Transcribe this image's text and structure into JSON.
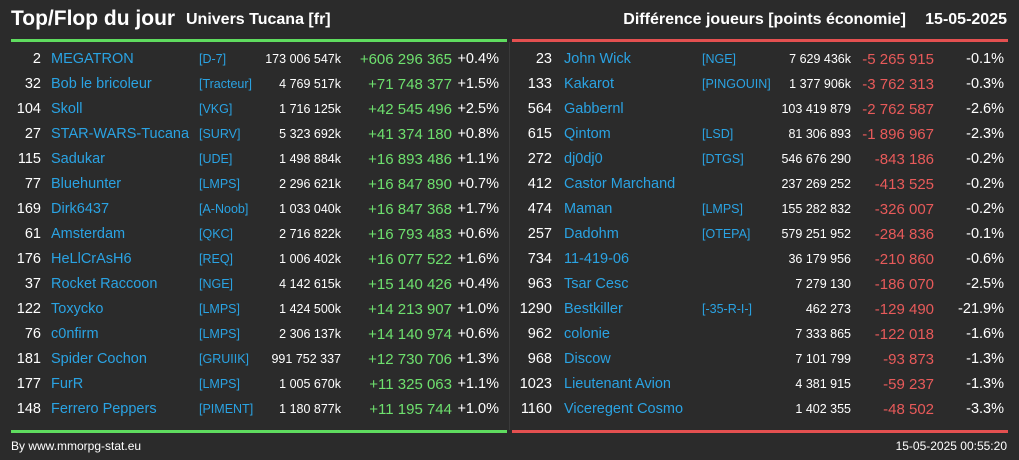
{
  "header": {
    "title": "Top/Flop du jour",
    "subtitle": "Univers Tucana [fr]",
    "diff_label": "Différence joueurs [points économie]",
    "date": "15-05-2025"
  },
  "colors": {
    "background": "#2b2b2b",
    "name": "#2aa3e3",
    "gain": "#6ee06e",
    "loss": "#e85a5a",
    "top_bar": "#5fdc5f",
    "flop_bar": "#e45050"
  },
  "top": [
    {
      "rank": "2",
      "name": "MEGATRON",
      "alliance": "[D-7]",
      "points": "173 006 547k",
      "diff": "+606 296 365",
      "pct": "+0.4%"
    },
    {
      "rank": "32",
      "name": "Bob le bricoleur",
      "alliance": "[Tracteur]",
      "points": "4 769 517k",
      "diff": "+71 748 377",
      "pct": "+1.5%"
    },
    {
      "rank": "104",
      "name": "Skoll",
      "alliance": "[VKG]",
      "points": "1 716 125k",
      "diff": "+42 545 496",
      "pct": "+2.5%"
    },
    {
      "rank": "27",
      "name": "STAR-WARS-Tucana",
      "alliance": "[SURV]",
      "points": "5 323 692k",
      "diff": "+41 374 180",
      "pct": "+0.8%"
    },
    {
      "rank": "115",
      "name": "Sadukar",
      "alliance": "[UDE]",
      "points": "1 498 884k",
      "diff": "+16 893 486",
      "pct": "+1.1%"
    },
    {
      "rank": "77",
      "name": "Bluehunter",
      "alliance": "[LMPS]",
      "points": "2 296 621k",
      "diff": "+16 847 890",
      "pct": "+0.7%"
    },
    {
      "rank": "169",
      "name": "Dirk6437",
      "alliance": "[A-Noob]",
      "points": "1 033 040k",
      "diff": "+16 847 368",
      "pct": "+1.7%"
    },
    {
      "rank": "61",
      "name": "Amsterdam",
      "alliance": "[QKC]",
      "points": "2 716 822k",
      "diff": "+16 793 483",
      "pct": "+0.6%"
    },
    {
      "rank": "176",
      "name": "HeLlCrAsH6",
      "alliance": "[REQ]",
      "points": "1 006 402k",
      "diff": "+16 077 522",
      "pct": "+1.6%"
    },
    {
      "rank": "37",
      "name": "Rocket Raccoon",
      "alliance": "[NGE]",
      "points": "4 142 615k",
      "diff": "+15 140 426",
      "pct": "+0.4%"
    },
    {
      "rank": "122",
      "name": "Toxycko",
      "alliance": "[LMPS]",
      "points": "1 424 500k",
      "diff": "+14 213 907",
      "pct": "+1.0%"
    },
    {
      "rank": "76",
      "name": "c0nfirm",
      "alliance": "[LMPS]",
      "points": "2 306 137k",
      "diff": "+14 140 974",
      "pct": "+0.6%"
    },
    {
      "rank": "181",
      "name": "Spider Cochon",
      "alliance": "[GRUIIK]",
      "points": "991 752 337",
      "diff": "+12 730 706",
      "pct": "+1.3%"
    },
    {
      "rank": "177",
      "name": "FurR",
      "alliance": "[LMPS]",
      "points": "1 005 670k",
      "diff": "+11 325 063",
      "pct": "+1.1%"
    },
    {
      "rank": "148",
      "name": "Ferrero Peppers",
      "alliance": "[PIMENT]",
      "points": "1 180 877k",
      "diff": "+11 195 744",
      "pct": "+1.0%"
    }
  ],
  "flop": [
    {
      "rank": "23",
      "name": "John Wick",
      "alliance": "[NGE]",
      "points": "7 629 436k",
      "diff": "-5 265 915",
      "pct": "-0.1%"
    },
    {
      "rank": "133",
      "name": "Kakarot",
      "alliance": "[PINGOUIN]",
      "points": "1 377 906k",
      "diff": "-3 762 313",
      "pct": "-0.3%"
    },
    {
      "rank": "564",
      "name": "Gabbernl",
      "alliance": "",
      "points": "103 419 879",
      "diff": "-2 762 587",
      "pct": "-2.6%"
    },
    {
      "rank": "615",
      "name": "Qintom",
      "alliance": "[LSD]",
      "points": "81 306 893",
      "diff": "-1 896 967",
      "pct": "-2.3%"
    },
    {
      "rank": "272",
      "name": "dj0dj0",
      "alliance": "[DTGS]",
      "points": "546 676 290",
      "diff": "-843 186",
      "pct": "-0.2%"
    },
    {
      "rank": "412",
      "name": "Castor Marchand",
      "alliance": "",
      "points": "237 269 252",
      "diff": "-413 525",
      "pct": "-0.2%"
    },
    {
      "rank": "474",
      "name": "Maman",
      "alliance": "[LMPS]",
      "points": "155 282 832",
      "diff": "-326 007",
      "pct": "-0.2%"
    },
    {
      "rank": "257",
      "name": "Dadohm",
      "alliance": "[OTEPA]",
      "points": "579 251 952",
      "diff": "-284 836",
      "pct": "-0.1%"
    },
    {
      "rank": "734",
      "name": "11-419-06",
      "alliance": "",
      "points": "36 179 956",
      "diff": "-210 860",
      "pct": "-0.6%"
    },
    {
      "rank": "963",
      "name": "Tsar Cesc",
      "alliance": "",
      "points": "7 279 130",
      "diff": "-186 070",
      "pct": "-2.5%"
    },
    {
      "rank": "1290",
      "name": "Bestkiller",
      "alliance": "[-35-R-I-]",
      "points": "462 273",
      "diff": "-129 490",
      "pct": "-21.9%"
    },
    {
      "rank": "962",
      "name": "colonie",
      "alliance": "",
      "points": "7 333 865",
      "diff": "-122 018",
      "pct": "-1.6%"
    },
    {
      "rank": "968",
      "name": "Discow",
      "alliance": "",
      "points": "7 101 799",
      "diff": "-93 873",
      "pct": "-1.3%"
    },
    {
      "rank": "1023",
      "name": "Lieutenant Avion",
      "alliance": "",
      "points": "4 381 915",
      "diff": "-59 237",
      "pct": "-1.3%"
    },
    {
      "rank": "1160",
      "name": "Viceregent Cosmo",
      "alliance": "",
      "points": "1 402 355",
      "diff": "-48 502",
      "pct": "-3.3%"
    }
  ],
  "footer": {
    "by": "By www.mmorpg-stat.eu",
    "timestamp": "15-05-2025 00:55:20"
  }
}
